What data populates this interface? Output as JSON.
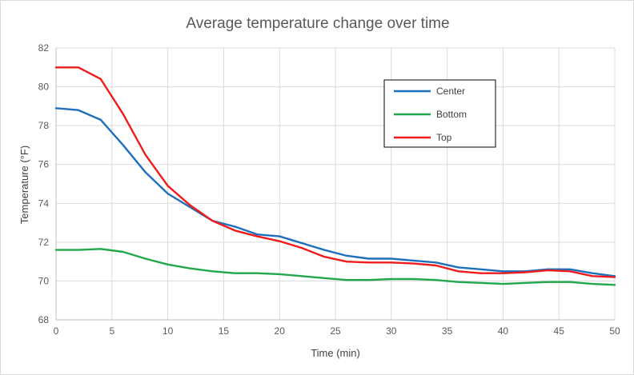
{
  "chart_data": {
    "type": "line",
    "title": "Average temperature change over time",
    "xlabel": "Time (min)",
    "ylabel": "Temperature (°F)",
    "xlim": [
      0,
      50
    ],
    "ylim": [
      68,
      82
    ],
    "xticks": [
      0,
      5,
      10,
      15,
      20,
      25,
      30,
      35,
      40,
      45,
      50
    ],
    "yticks": [
      68,
      70,
      72,
      74,
      76,
      78,
      80,
      82
    ],
    "grid": true,
    "legend_position": "top-right",
    "x": [
      0,
      2,
      4,
      6,
      8,
      10,
      12,
      14,
      16,
      18,
      20,
      22,
      24,
      26,
      28,
      30,
      32,
      34,
      36,
      38,
      40,
      42,
      44,
      46,
      48,
      50
    ],
    "series": [
      {
        "name": "Center",
        "color": "#1f6fbf",
        "values": [
          78.9,
          78.8,
          78.3,
          77.0,
          75.6,
          74.5,
          73.8,
          73.1,
          72.8,
          72.4,
          72.3,
          71.95,
          71.6,
          71.3,
          71.15,
          71.15,
          71.05,
          70.95,
          70.7,
          70.6,
          70.5,
          70.5,
          70.6,
          70.6,
          70.4,
          70.25
        ]
      },
      {
        "name": "Bottom",
        "color": "#21a84a",
        "values": [
          71.6,
          71.6,
          71.65,
          71.5,
          71.15,
          70.85,
          70.65,
          70.5,
          70.4,
          70.4,
          70.35,
          70.25,
          70.15,
          70.05,
          70.05,
          70.1,
          70.1,
          70.05,
          69.95,
          69.9,
          69.85,
          69.9,
          69.95,
          69.95,
          69.85,
          69.8
        ]
      },
      {
        "name": "Top",
        "color": "#ee1c1c",
        "values": [
          81.0,
          81.0,
          80.4,
          78.6,
          76.5,
          74.9,
          73.9,
          73.1,
          72.6,
          72.3,
          72.05,
          71.7,
          71.25,
          71.0,
          70.95,
          70.95,
          70.9,
          70.8,
          70.5,
          70.4,
          70.4,
          70.45,
          70.55,
          70.5,
          70.25,
          70.2
        ]
      }
    ]
  }
}
